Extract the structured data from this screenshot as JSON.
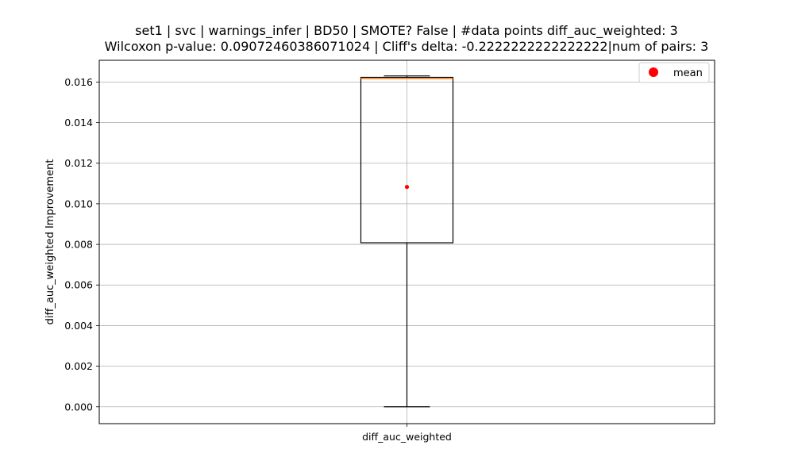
{
  "chart_data": {
    "type": "box",
    "title_line1": "set1 | svc | warnings_infer | BD50 | SMOTE? False | #data points diff_auc_weighted: 3",
    "title_line2": "Wilcoxon p-value: 0.09072460386071024 | Cliff's delta: -0.2222222222222222|num of pairs: 3",
    "xlabel": "",
    "ylabel": "diff_auc_weighted Improvement",
    "categories": [
      "diff_auc_weighted"
    ],
    "ylim": [
      -0.00083,
      0.01707
    ],
    "yticks": [
      0.0,
      0.002,
      0.004,
      0.006,
      0.008,
      0.01,
      0.012,
      0.014,
      0.016
    ],
    "ytick_labels": [
      "0.000",
      "0.002",
      "0.004",
      "0.006",
      "0.008",
      "0.010",
      "0.012",
      "0.014",
      "0.016"
    ],
    "grid": true,
    "box": {
      "whisker_low": 0.0,
      "q1": 0.00808,
      "median": 0.01617,
      "q3": 0.01623,
      "whisker_high": 0.0163,
      "mean": 0.01083
    },
    "legend": {
      "position": "upper-right",
      "entries": [
        {
          "label": "mean",
          "color": "#ff0000",
          "marker": "circle"
        }
      ]
    },
    "colors": {
      "median": "#ff7f0e",
      "mean": "#ff0000",
      "grid": "#b0b0b0",
      "box": "#000000"
    }
  }
}
